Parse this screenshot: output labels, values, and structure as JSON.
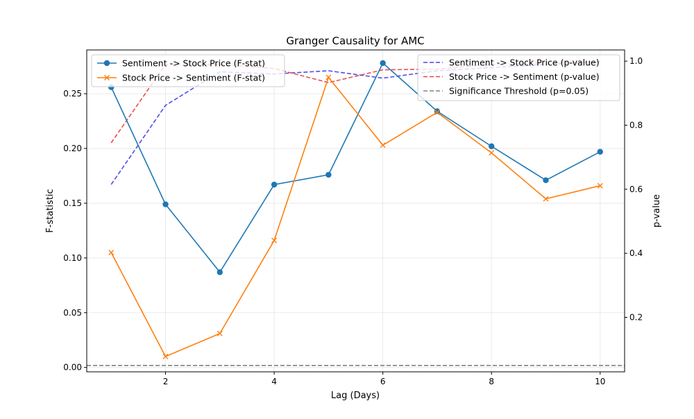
{
  "chart_data": {
    "type": "line",
    "title": "Granger Causality for AMC",
    "xlabel": "Lag (Days)",
    "ylabel_left": "F-statistic",
    "ylabel_right": "p-value",
    "x": [
      1,
      2,
      3,
      4,
      5,
      6,
      7,
      8,
      9,
      10
    ],
    "xlim": [
      0.55,
      10.45
    ],
    "ylim_left": [
      -0.004,
      0.29
    ],
    "ylim_right": [
      0.03,
      1.035
    ],
    "xticks": [
      2,
      4,
      6,
      8,
      10
    ],
    "yticks_left": [
      0.0,
      0.05,
      0.1,
      0.15,
      0.2,
      0.25
    ],
    "yticks_left_labels": [
      "0.00",
      "0.05",
      "0.10",
      "0.15",
      "0.20",
      "0.25"
    ],
    "yticks_right": [
      0.2,
      0.4,
      0.6,
      0.8,
      1.0
    ],
    "yticks_right_labels": [
      "0.2",
      "0.4",
      "0.6",
      "0.8",
      "1.0"
    ],
    "grid": true,
    "series_left": [
      {
        "name": "Sentiment -> Stock Price (F-stat)",
        "color": "#1f77b4",
        "marker": "circle",
        "values": [
          0.256,
          0.149,
          0.087,
          0.167,
          0.176,
          0.278,
          0.234,
          0.202,
          0.171,
          0.197
        ]
      },
      {
        "name": "Stock Price -> Sentiment (F-stat)",
        "color": "#ff7f0e",
        "marker": "x",
        "values": [
          0.105,
          0.01,
          0.031,
          0.116,
          0.265,
          0.203,
          0.233,
          0.196,
          0.154,
          0.166
        ]
      }
    ],
    "series_right": [
      {
        "name": "Sentiment -> Stock Price (p-value)",
        "color": "#4444ee",
        "dash": "dashed",
        "values": [
          0.615,
          0.862,
          0.967,
          0.96,
          0.97,
          0.947,
          0.97,
          0.98,
          0.99,
          0.998
        ]
      },
      {
        "name": "Stock Price -> Sentiment (p-value)",
        "color": "#e84545",
        "dash": "dashed",
        "values": [
          0.745,
          0.99,
          0.99,
          0.977,
          0.933,
          0.973,
          0.975,
          0.99,
          0.995,
          0.998
        ]
      }
    ],
    "threshold": {
      "name": "Significance Threshold (p=0.05)",
      "value": 0.05,
      "color": "#808080"
    },
    "legend_left_placement": "top-left",
    "legend_right_placement": "top-right"
  }
}
